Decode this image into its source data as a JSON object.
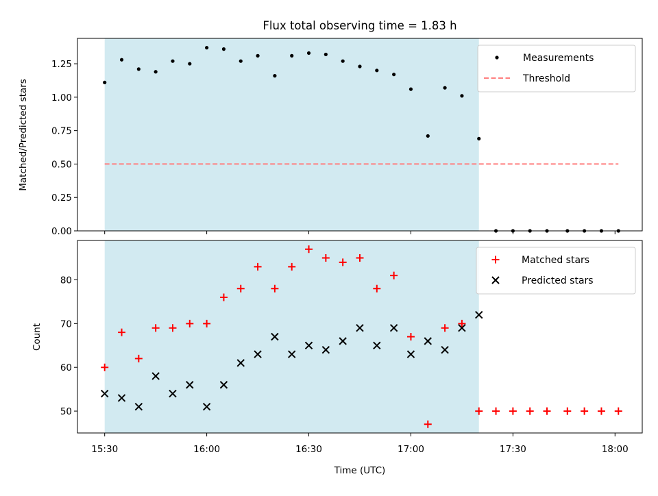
{
  "chart_data": [
    {
      "type": "scatter",
      "title": "Flux total observing time = 1.83 h",
      "xlabel": "",
      "ylabel": "Matched/Predicted stars",
      "ylim": [
        0,
        1.44
      ],
      "xlim": [
        "15:22",
        "18:08"
      ],
      "yticks": [
        "0.00",
        "0.25",
        "0.50",
        "0.75",
        "1.00",
        "1.25"
      ],
      "ytick_values": [
        0,
        0.25,
        0.5,
        0.75,
        1.0,
        1.25
      ],
      "shaded_interval": [
        "15:30",
        "17:20"
      ],
      "shaded_color": "#add8e6",
      "legend_position": "upper right",
      "series": [
        {
          "name": "Measurements",
          "marker": "dot",
          "color": "#000000",
          "x": [
            "15:30",
            "15:35",
            "15:40",
            "15:45",
            "15:50",
            "15:55",
            "16:00",
            "16:05",
            "16:10",
            "16:15",
            "16:20",
            "16:25",
            "16:30",
            "16:35",
            "16:40",
            "16:45",
            "16:50",
            "16:55",
            "17:00",
            "17:05",
            "17:10",
            "17:15",
            "17:20",
            "17:25",
            "17:30",
            "17:35",
            "17:40",
            "17:46",
            "17:51",
            "17:56",
            "18:01"
          ],
          "y": [
            1.11,
            1.28,
            1.21,
            1.19,
            1.27,
            1.25,
            1.37,
            1.36,
            1.27,
            1.31,
            1.16,
            1.31,
            1.33,
            1.32,
            1.27,
            1.23,
            1.2,
            1.17,
            1.06,
            0.71,
            1.07,
            1.01,
            0.69,
            0,
            0,
            0,
            0,
            0,
            0,
            0,
            0
          ]
        },
        {
          "name": "Threshold",
          "marker": "dashed-line",
          "color": "#ff7f7f",
          "x": [
            "15:30",
            "18:01"
          ],
          "y": [
            0.5,
            0.5
          ]
        }
      ]
    },
    {
      "type": "scatter",
      "title": "",
      "xlabel": "Time (UTC)",
      "ylabel": "Count",
      "ylim": [
        45,
        89
      ],
      "xlim": [
        "15:22",
        "18:08"
      ],
      "xticks": [
        "15:30",
        "16:00",
        "16:30",
        "17:00",
        "17:30",
        "18:00"
      ],
      "yticks": [
        "50",
        "60",
        "70",
        "80"
      ],
      "ytick_values": [
        50,
        60,
        70,
        80
      ],
      "shaded_interval": [
        "15:30",
        "17:20"
      ],
      "shaded_color": "#add8e6",
      "legend_position": "upper right",
      "series": [
        {
          "name": "Matched stars",
          "marker": "plus",
          "color": "#ff0000",
          "x": [
            "15:30",
            "15:35",
            "15:40",
            "15:45",
            "15:50",
            "15:55",
            "16:00",
            "16:05",
            "16:10",
            "16:15",
            "16:20",
            "16:25",
            "16:30",
            "16:35",
            "16:40",
            "16:45",
            "16:50",
            "16:55",
            "17:00",
            "17:05",
            "17:10",
            "17:15",
            "17:20",
            "17:25",
            "17:30",
            "17:35",
            "17:40",
            "17:46",
            "17:51",
            "17:56",
            "18:01"
          ],
          "y": [
            60,
            68,
            62,
            69,
            69,
            70,
            70,
            76,
            78,
            83,
            78,
            83,
            87,
            85,
            84,
            85,
            78,
            81,
            67,
            47,
            69,
            70,
            50,
            50,
            50,
            50,
            50,
            50,
            50,
            50,
            50
          ]
        },
        {
          "name": "Predicted stars",
          "marker": "x",
          "color": "#000000",
          "x": [
            "15:30",
            "15:35",
            "15:40",
            "15:45",
            "15:50",
            "15:55",
            "16:00",
            "16:05",
            "16:10",
            "16:15",
            "16:20",
            "16:25",
            "16:30",
            "16:35",
            "16:40",
            "16:45",
            "16:50",
            "16:55",
            "17:00",
            "17:05",
            "17:10",
            "17:15",
            "17:20"
          ],
          "y": [
            54,
            53,
            51,
            58,
            54,
            56,
            51,
            56,
            61,
            63,
            67,
            63,
            65,
            64,
            66,
            69,
            65,
            69,
            63,
            66,
            64,
            69,
            72
          ]
        }
      ]
    }
  ]
}
